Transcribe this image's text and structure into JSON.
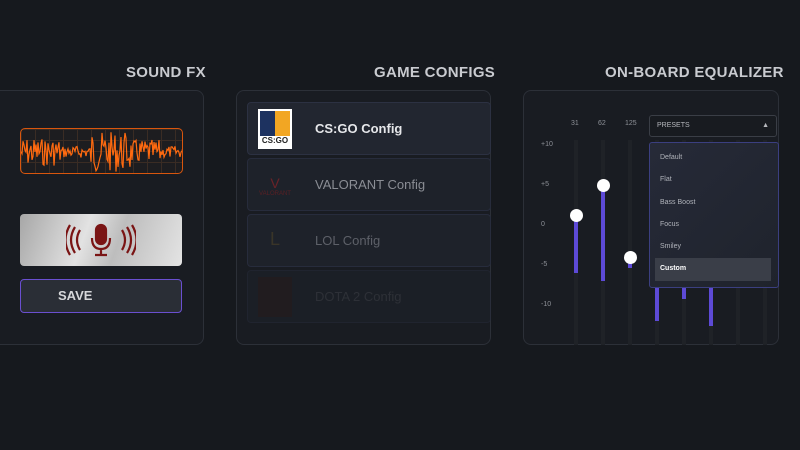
{
  "sections": {
    "sound_fx": "SOUND FX",
    "game_configs": "GAME CONFIGS",
    "equalizer": "ON-BOARD EQUALIZER"
  },
  "sound_fx": {
    "save_label": "SAVE",
    "mic_icon": "microphone-broadcast-icon",
    "wave_color": "#ff6a10"
  },
  "configs": [
    {
      "label": "CS:GO Config",
      "logo_text": "CS:GO",
      "active": true
    },
    {
      "label": "VALORANT Config",
      "logo_text": "VALORANT",
      "active": false
    },
    {
      "label": "LOL Config",
      "active": false
    },
    {
      "label": "DOTA 2 Config",
      "active": false
    }
  ],
  "equalizer": {
    "bands": [
      "31",
      "62",
      "125"
    ],
    "scale": [
      "+10",
      "+5",
      "0",
      "-5",
      "-10"
    ],
    "levels_db": [
      1.2,
      5,
      -4
    ],
    "bar_low_db": [
      -6,
      -7,
      -5.4,
      -12,
      -9.3,
      -12.6
    ],
    "accent": "#5d4ad6",
    "presets_label": "PRESETS",
    "preset_options": [
      "Default",
      "Flat",
      "Bass Boost",
      "Focus",
      "Smiley",
      "Custom"
    ],
    "selected_preset": "Custom"
  }
}
